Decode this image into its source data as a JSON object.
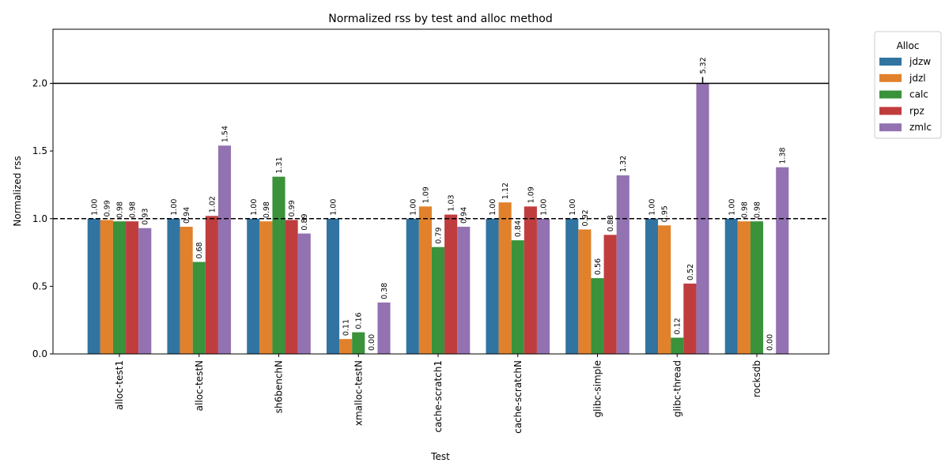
{
  "chart_data": {
    "type": "bar",
    "title": "Normalized rss by test and alloc method",
    "x_label": "Test",
    "y_label": "Normalized rss",
    "legend_title": "Alloc",
    "legend": "upper right outside",
    "categories": [
      "alloc-test1",
      "alloc-testN",
      "sh6benchN",
      "xmalloc-testN",
      "cache-scratch1",
      "cache-scratchN",
      "glibc-simple",
      "glibc-thread",
      "rocksdb"
    ],
    "series": [
      {
        "name": "jdzw",
        "color": "#3274a1",
        "values": [
          1.0,
          1.0,
          1.0,
          1.0,
          1.0,
          1.0,
          1.0,
          1.0,
          1.0
        ],
        "value_labels": [
          "1.00",
          "1.00",
          "1.00",
          "1.00",
          "1.00",
          "1.00",
          "1.00",
          "1.00",
          "1.00"
        ]
      },
      {
        "name": "jdzl",
        "color": "#e1812c",
        "values": [
          0.99,
          0.94,
          0.98,
          0.11,
          1.09,
          1.12,
          0.92,
          0.95,
          0.98
        ],
        "value_labels": [
          "0.99",
          "0.94",
          "0.98",
          "0.11",
          "1.09",
          "1.12",
          "0.92",
          "0.95",
          "0.98"
        ]
      },
      {
        "name": "calc",
        "color": "#3a923a",
        "values": [
          0.98,
          0.68,
          1.31,
          0.16,
          0.79,
          0.84,
          0.56,
          0.12,
          0.98
        ],
        "value_labels": [
          "0.98",
          "0.68",
          "1.31",
          "0.16",
          "0.79",
          "0.84",
          "0.56",
          "0.12",
          "0.98"
        ]
      },
      {
        "name": "rpz",
        "color": "#c03d3e",
        "values": [
          0.98,
          1.02,
          0.99,
          0.0,
          1.03,
          1.09,
          0.88,
          0.52,
          0.0
        ],
        "value_labels": [
          "0.98",
          "1.02",
          "0.99",
          "0.00",
          "1.03",
          "1.09",
          "0.88",
          "0.52",
          "0.00"
        ]
      },
      {
        "name": "zmlc",
        "color": "#9372b2",
        "values": [
          0.93,
          1.54,
          0.89,
          0.38,
          0.94,
          1.0,
          1.32,
          5.32,
          1.38
        ],
        "value_labels": [
          "0.93",
          "1.54",
          "0.89",
          "0.38",
          "0.94",
          "1.00",
          "1.32",
          "5.32",
          "1.38"
        ]
      }
    ],
    "ylim": [
      0,
      2.4
    ],
    "yticks": [
      {
        "value": 0,
        "label": "0.0"
      },
      0.5,
      {
        "value": 1,
        "label": "1.0"
      },
      1.5,
      {
        "value": 2,
        "label": "2.0"
      }
    ],
    "clip_at": 2,
    "hlines": [
      {
        "value": 1,
        "style": "dashed"
      },
      {
        "value": 2,
        "style": "solid"
      }
    ]
  }
}
